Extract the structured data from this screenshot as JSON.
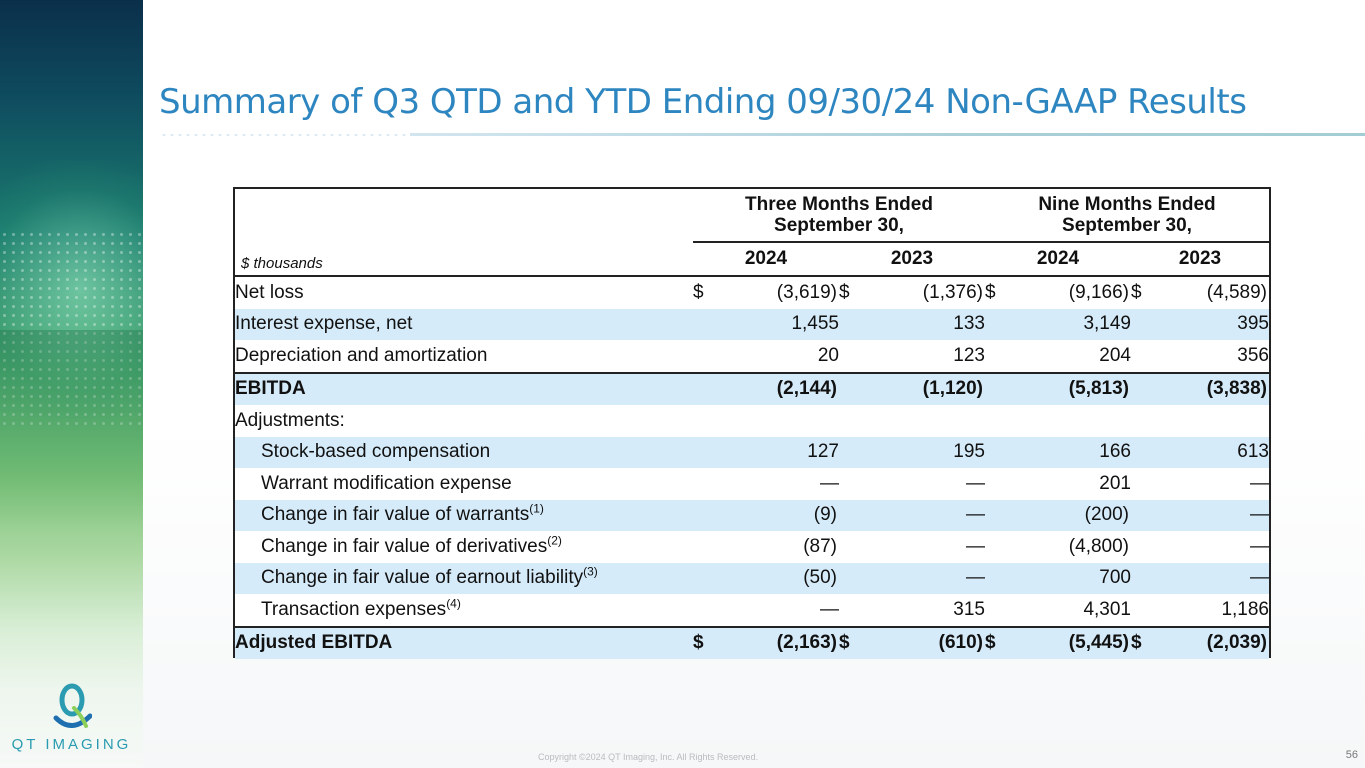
{
  "title": "Summary of Q3 QTD and YTD Ending 09/30/24 Non-GAAP Results",
  "logo": {
    "text": "QT IMAGING"
  },
  "table": {
    "group_headers": [
      {
        "line1": "Three Months Ended",
        "line2": "September 30,"
      },
      {
        "line1": "Nine Months Ended",
        "line2": "September 30,"
      }
    ],
    "units_label": "$ thousands",
    "years": [
      "2024",
      "2023",
      "2024",
      "2023"
    ],
    "rows": [
      {
        "label": "Net loss",
        "sup": "",
        "cells": [
          {
            "cur": "$",
            "val": "(3,619)"
          },
          {
            "cur": "$",
            "val": "(1,376)"
          },
          {
            "cur": "$",
            "val": "(9,166)"
          },
          {
            "cur": "$",
            "val": "(4,589)"
          }
        ]
      },
      {
        "label": "Interest expense, net",
        "sup": "",
        "cells": [
          {
            "cur": "",
            "val": "1,455"
          },
          {
            "cur": "",
            "val": "133"
          },
          {
            "cur": "",
            "val": "3,149"
          },
          {
            "cur": "",
            "val": "395"
          }
        ]
      },
      {
        "label": "Depreciation and amortization",
        "sup": "",
        "cells": [
          {
            "cur": "",
            "val": "20"
          },
          {
            "cur": "",
            "val": "123"
          },
          {
            "cur": "",
            "val": "204"
          },
          {
            "cur": "",
            "val": "356"
          }
        ]
      },
      {
        "label": "EBITDA",
        "sup": "",
        "cells": [
          {
            "cur": "",
            "val": "(2,144)"
          },
          {
            "cur": "",
            "val": "(1,120)"
          },
          {
            "cur": "",
            "val": "(5,813)"
          },
          {
            "cur": "",
            "val": "(3,838)"
          }
        ]
      },
      {
        "label": "Adjustments:",
        "sup": "",
        "cells": [
          {
            "cur": "",
            "val": ""
          },
          {
            "cur": "",
            "val": ""
          },
          {
            "cur": "",
            "val": ""
          },
          {
            "cur": "",
            "val": ""
          }
        ]
      },
      {
        "label": "Stock-based compensation",
        "sup": "",
        "cells": [
          {
            "cur": "",
            "val": "127"
          },
          {
            "cur": "",
            "val": "195"
          },
          {
            "cur": "",
            "val": "166"
          },
          {
            "cur": "",
            "val": "613"
          }
        ]
      },
      {
        "label": "Warrant modification expense",
        "sup": "",
        "cells": [
          {
            "cur": "",
            "val": "—"
          },
          {
            "cur": "",
            "val": "—"
          },
          {
            "cur": "",
            "val": "201"
          },
          {
            "cur": "",
            "val": "—"
          }
        ]
      },
      {
        "label": "Change in fair value of warrants",
        "sup": "(1)",
        "cells": [
          {
            "cur": "",
            "val": "(9)"
          },
          {
            "cur": "",
            "val": "—"
          },
          {
            "cur": "",
            "val": "(200)"
          },
          {
            "cur": "",
            "val": "—"
          }
        ]
      },
      {
        "label": "Change in fair value of derivatives",
        "sup": "(2)",
        "cells": [
          {
            "cur": "",
            "val": "(87)"
          },
          {
            "cur": "",
            "val": "—"
          },
          {
            "cur": "",
            "val": "(4,800)"
          },
          {
            "cur": "",
            "val": "—"
          }
        ]
      },
      {
        "label": "Change in fair value of earnout liability",
        "sup": "(3)",
        "cells": [
          {
            "cur": "",
            "val": "(50)"
          },
          {
            "cur": "",
            "val": "—"
          },
          {
            "cur": "",
            "val": "700"
          },
          {
            "cur": "",
            "val": "—"
          }
        ]
      },
      {
        "label": "Transaction expenses",
        "sup": "(4)",
        "cells": [
          {
            "cur": "",
            "val": "—"
          },
          {
            "cur": "",
            "val": "315"
          },
          {
            "cur": "",
            "val": "4,301"
          },
          {
            "cur": "",
            "val": "1,186"
          }
        ]
      },
      {
        "label": "Adjusted EBITDA",
        "sup": "",
        "cells": [
          {
            "cur": "$",
            "val": "(2,163)"
          },
          {
            "cur": "$",
            "val": "(610)"
          },
          {
            "cur": "$",
            "val": "(5,445)"
          },
          {
            "cur": "$",
            "val": "(2,039)"
          }
        ]
      }
    ]
  },
  "footer": {
    "copyright": "Copyright ©2024 QT Imaging, Inc. All Rights Reserved.",
    "page_number": "56"
  },
  "colors": {
    "title": "#2e86c1",
    "row_shade": "#d6ebf9",
    "logo": "#2a9bb0"
  }
}
